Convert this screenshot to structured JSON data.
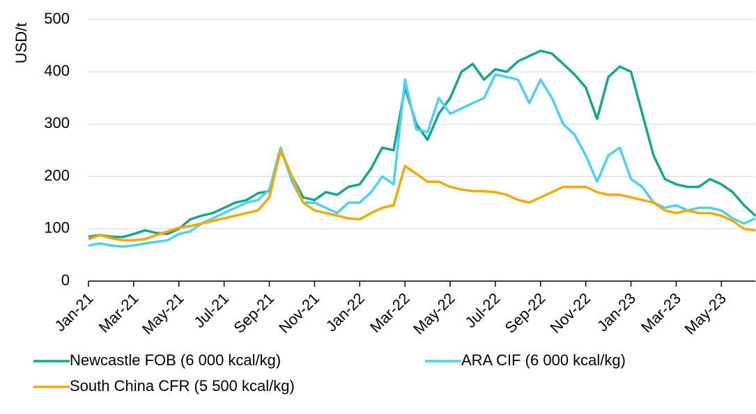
{
  "chart_data": {
    "type": "line",
    "y_label": "USD/t",
    "categories": [
      "Jan-21",
      null,
      null,
      null,
      "Mar-21",
      null,
      null,
      null,
      "May-21",
      null,
      null,
      null,
      "Jul-21",
      null,
      null,
      null,
      "Sep-21",
      null,
      null,
      null,
      "Nov-21",
      null,
      null,
      null,
      "Jan-22",
      null,
      null,
      null,
      "Mar-22",
      null,
      null,
      null,
      "May-22",
      null,
      null,
      null,
      "Jul-22",
      null,
      null,
      null,
      "Sep-22",
      null,
      null,
      null,
      "Nov-22",
      null,
      null,
      null,
      "Jan-23",
      null,
      null,
      null,
      "Mar-23",
      null,
      null,
      null,
      "May-23",
      null,
      null,
      null
    ],
    "series": [
      {
        "name": "Newcastle FOB (6 000 kcal/kg)",
        "color": "#17a58e",
        "values": [
          85,
          88,
          85,
          84,
          90,
          97,
          92,
          90,
          100,
          118,
          125,
          130,
          140,
          150,
          155,
          168,
          172,
          250,
          200,
          160,
          155,
          170,
          165,
          180,
          185,
          215,
          255,
          250,
          370,
          300,
          270,
          320,
          350,
          400,
          415,
          385,
          405,
          400,
          420,
          430,
          440,
          435,
          415,
          395,
          370,
          310,
          390,
          410,
          400,
          320,
          240,
          195,
          185,
          180,
          180,
          195,
          185,
          170,
          145,
          125
        ]
      },
      {
        "name": "ARA CIF (6 000 kcal/kg)",
        "color": "#4fcff5",
        "values": [
          68,
          72,
          68,
          66,
          68,
          72,
          75,
          78,
          90,
          95,
          110,
          120,
          130,
          140,
          150,
          155,
          175,
          255,
          190,
          150,
          150,
          140,
          130,
          150,
          150,
          170,
          200,
          185,
          385,
          290,
          285,
          350,
          320,
          330,
          340,
          350,
          395,
          390,
          385,
          340,
          385,
          350,
          300,
          280,
          240,
          190,
          240,
          255,
          195,
          180,
          150,
          140,
          145,
          135,
          140,
          140,
          135,
          120,
          110,
          120
        ]
      },
      {
        "name": "South China CFR (5 500 kcal/kg)",
        "color": "#f2a900",
        "values": [
          80,
          88,
          82,
          78,
          78,
          80,
          88,
          95,
          102,
          105,
          110,
          115,
          120,
          125,
          130,
          135,
          160,
          250,
          200,
          150,
          135,
          130,
          125,
          120,
          118,
          130,
          140,
          145,
          220,
          205,
          190,
          190,
          180,
          175,
          172,
          172,
          170,
          165,
          155,
          150,
          160,
          170,
          180,
          180,
          180,
          170,
          165,
          165,
          160,
          155,
          150,
          135,
          130,
          135,
          130,
          130,
          125,
          115,
          100,
          97
        ]
      }
    ],
    "ylim": [
      0,
      500
    ],
    "yticks": [
      0,
      100,
      200,
      300,
      400,
      500
    ],
    "grid": true
  }
}
